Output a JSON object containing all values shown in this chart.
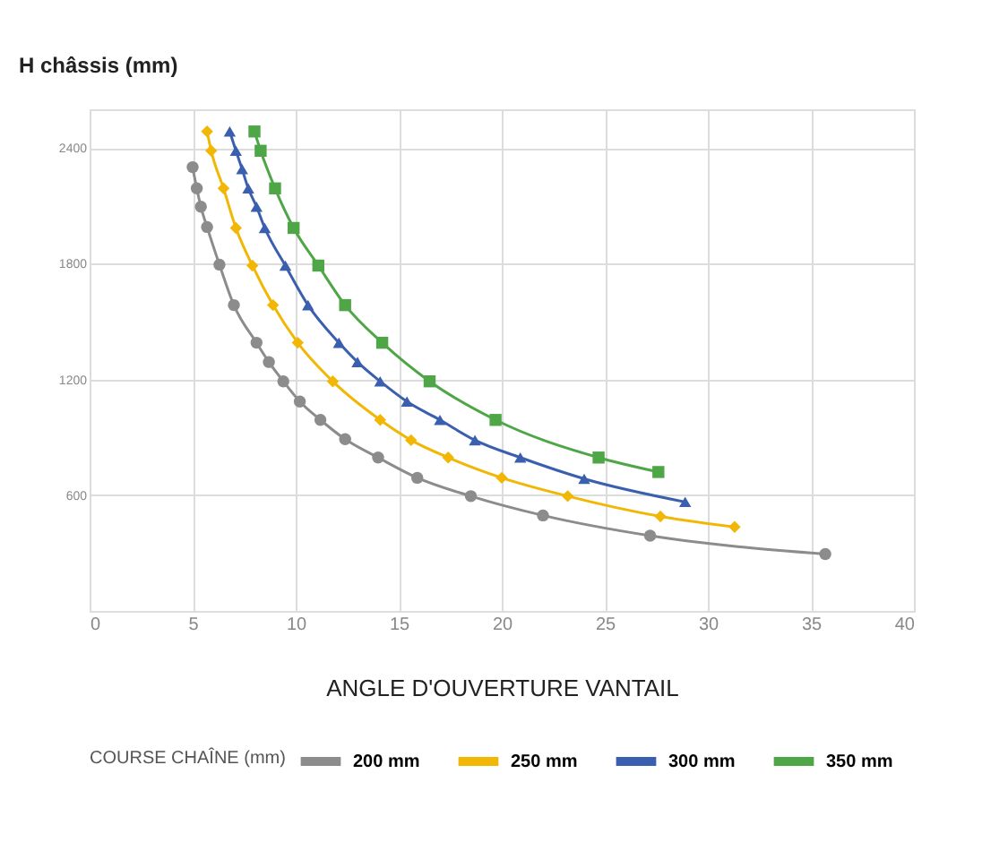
{
  "chart_data": {
    "type": "line",
    "ylabel": "H châssis (mm)",
    "xlabel": "ANGLE D'OUVERTURE VANTAIL",
    "legend_title": "COURSE CHAÎNE (mm)",
    "xlim": [
      0,
      40
    ],
    "xticks": [
      0,
      5,
      10,
      15,
      20,
      25,
      30,
      35,
      40
    ],
    "ylim": [
      0,
      2600
    ],
    "yticks": [
      600,
      1200,
      1800,
      2400
    ],
    "grid": true,
    "legend": "bottom",
    "series": [
      {
        "name": "200 mm",
        "color": "#8c8c8c",
        "marker": "circle",
        "x": [
          5.0,
          5.2,
          5.4,
          5.7,
          6.3,
          7.0,
          8.1,
          8.7,
          9.4,
          10.2,
          11.2,
          12.4,
          14.0,
          15.9,
          18.5,
          22.0,
          27.2,
          35.7
        ],
        "values": [
          2300,
          2190,
          2095,
          1990,
          1795,
          1585,
          1390,
          1290,
          1190,
          1085,
          990,
          890,
          795,
          690,
          595,
          495,
          390,
          295
        ]
      },
      {
        "name": "250 mm",
        "color": "#f2b705",
        "marker": "diamond",
        "x": [
          5.7,
          5.9,
          6.5,
          7.1,
          7.9,
          8.9,
          10.1,
          11.8,
          14.1,
          15.6,
          17.4,
          20.0,
          23.2,
          27.7,
          31.3
        ],
        "values": [
          2485,
          2385,
          2190,
          1985,
          1790,
          1585,
          1390,
          1190,
          990,
          885,
          795,
          690,
          595,
          490,
          435
        ]
      },
      {
        "name": "300 mm",
        "color": "#3a5fae",
        "marker": "triangle",
        "x": [
          6.8,
          7.1,
          7.4,
          7.7,
          8.1,
          8.5,
          9.5,
          10.6,
          12.1,
          13.0,
          14.1,
          15.4,
          17.0,
          18.7,
          20.9,
          24.0,
          28.9
        ],
        "values": [
          2485,
          2385,
          2290,
          2190,
          2095,
          1985,
          1790,
          1585,
          1390,
          1290,
          1190,
          1085,
          990,
          885,
          795,
          685,
          565
        ]
      },
      {
        "name": "350 mm",
        "color": "#4fa647",
        "marker": "square",
        "x": [
          8.0,
          8.3,
          9.0,
          9.9,
          11.1,
          12.4,
          14.2,
          16.5,
          19.7,
          24.7,
          27.6
        ],
        "values": [
          2485,
          2385,
          2190,
          1985,
          1790,
          1585,
          1390,
          1190,
          990,
          795,
          720
        ]
      }
    ]
  }
}
